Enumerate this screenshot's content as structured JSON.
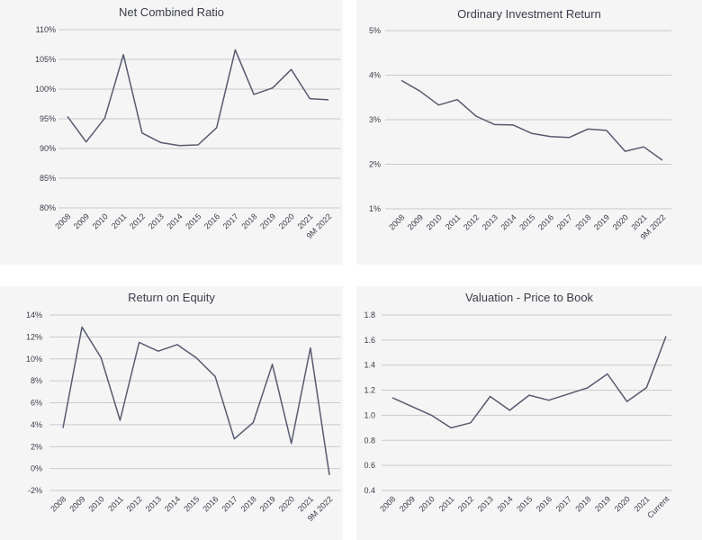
{
  "chart_data": [
    {
      "type": "line",
      "title": "Net Combined Ratio",
      "categories": [
        "2008",
        "2009",
        "2010",
        "2011",
        "2012",
        "2013",
        "2014",
        "2015",
        "2016",
        "2017",
        "2018",
        "2019",
        "2020",
        "2021",
        "9M 2022"
      ],
      "values": [
        95.4,
        91.1,
        95.1,
        105.8,
        92.6,
        91.0,
        90.5,
        90.6,
        93.5,
        106.6,
        99.1,
        100.2,
        103.3,
        98.4,
        98.2
      ],
      "ylim": [
        80,
        110
      ],
      "yticks": [
        "80%",
        "85%",
        "90%",
        "95%",
        "100%",
        "105%",
        "110%"
      ],
      "ytick_values": [
        80,
        85,
        90,
        95,
        100,
        105,
        110
      ],
      "grid": true
    },
    {
      "type": "line",
      "title": "Ordinary Investment Return",
      "categories": [
        "2008",
        "2009",
        "2010",
        "2011",
        "2012",
        "2013",
        "2014",
        "2015",
        "2016",
        "2017",
        "2018",
        "2019",
        "2020",
        "2021",
        "9M 2022"
      ],
      "values": [
        3.88,
        3.64,
        3.33,
        3.45,
        3.08,
        2.89,
        2.88,
        2.69,
        2.62,
        2.6,
        2.79,
        2.76,
        2.29,
        2.39,
        2.09
      ],
      "ylim": [
        1,
        5
      ],
      "yticks": [
        "1%",
        "2%",
        "3%",
        "4%",
        "5%"
      ],
      "ytick_values": [
        1,
        2,
        3,
        4,
        5
      ],
      "grid": true
    },
    {
      "type": "line",
      "title": "Return on Equity",
      "categories": [
        "2008",
        "2009",
        "2010",
        "2011",
        "2012",
        "2013",
        "2014",
        "2015",
        "2016",
        "2017",
        "2018",
        "2019",
        "2020",
        "2021",
        "9M 2022"
      ],
      "values": [
        3.7,
        12.9,
        10.1,
        4.4,
        11.5,
        10.7,
        11.3,
        10.1,
        8.4,
        2.7,
        4.2,
        9.5,
        2.3,
        11.0,
        -0.6
      ],
      "ylim": [
        -2,
        14
      ],
      "yticks": [
        "-2%",
        "0%",
        "2%",
        "4%",
        "6%",
        "8%",
        "10%",
        "12%",
        "14%"
      ],
      "ytick_values": [
        -2,
        0,
        2,
        4,
        6,
        8,
        10,
        12,
        14
      ],
      "grid": true
    },
    {
      "type": "line",
      "title": "Valuation - Price to Book",
      "categories": [
        "2008",
        "2009",
        "2010",
        "2011",
        "2012",
        "2013",
        "2014",
        "2015",
        "2016",
        "2017",
        "2018",
        "2019",
        "2020",
        "2021",
        "Current"
      ],
      "values": [
        1.14,
        1.07,
        1.0,
        0.9,
        0.94,
        1.15,
        1.04,
        1.16,
        1.12,
        1.17,
        1.22,
        1.33,
        1.11,
        1.22,
        1.63
      ],
      "ylim": [
        0.4,
        1.8
      ],
      "yticks": [
        "0.4",
        "0.6",
        "0.8",
        "1.0",
        "1.2",
        "1.4",
        "1.6",
        "1.8"
      ],
      "ytick_values": [
        0.4,
        0.6,
        0.8,
        1.0,
        1.2,
        1.4,
        1.6,
        1.8
      ],
      "grid": true
    }
  ]
}
